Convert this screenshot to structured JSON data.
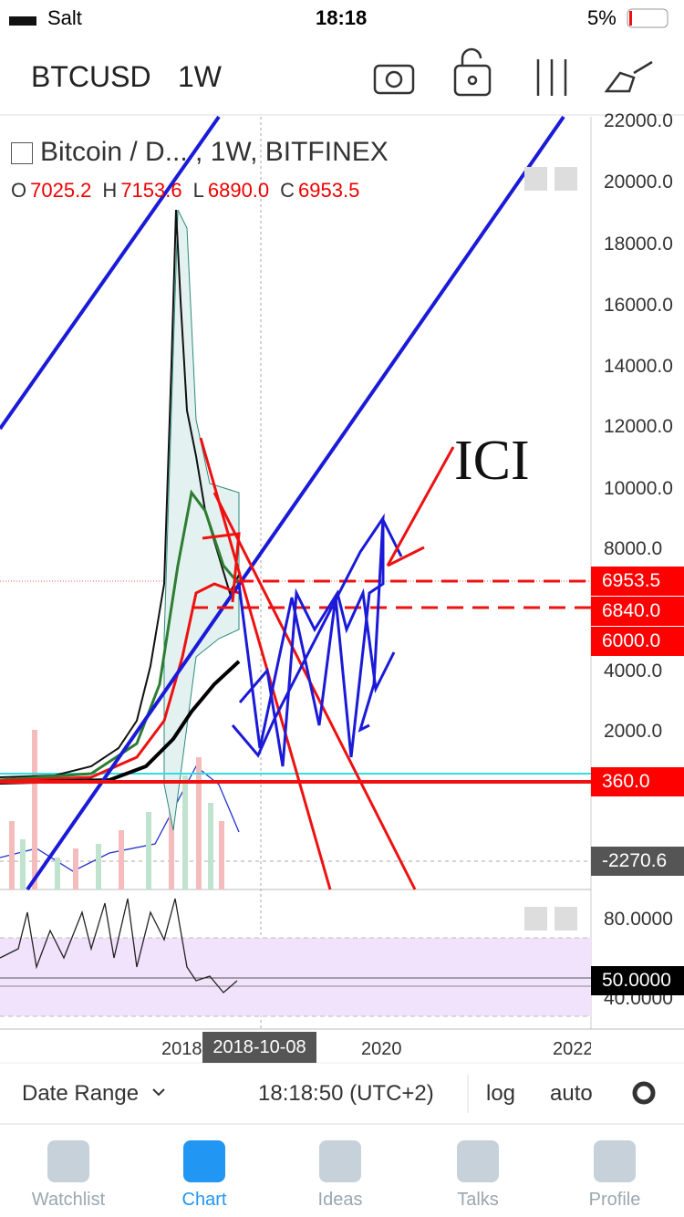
{
  "status_bar": {
    "carrier": "Salt",
    "time": "18:18",
    "battery": "5%"
  },
  "header": {
    "symbol": "BTCUSD",
    "interval": "1W"
  },
  "legend": {
    "title": "Bitcoin / D... , 1W, BITFINEX",
    "ohlc": [
      {
        "key": "O",
        "value": "7025.2"
      },
      {
        "key": "H",
        "value": "7153.6"
      },
      {
        "key": "L",
        "value": "6890.0"
      },
      {
        "key": "C",
        "value": "6953.5"
      }
    ]
  },
  "annotation": "ICI",
  "price_axis": [
    "22000.0",
    "20000.0",
    "18000.0",
    "16000.0",
    "14000.0",
    "12000.0",
    "10000.0",
    "8000.0",
    "4000.0",
    "2000.0"
  ],
  "price_tags": {
    "last": "6953.5",
    "line_1": "6840.0",
    "line_2": "6000.0",
    "line_3": "360.0",
    "volume": "-2270.6"
  },
  "rsi_axis": {
    "upper": "80.0000",
    "current": "50.0000",
    "lower": "40.0000"
  },
  "time_axis": {
    "labels": [
      "2018",
      "2020",
      "2022"
    ],
    "cursor": "2018-10-08"
  },
  "toolbar": {
    "range": "Date Range",
    "clock": "18:18:50 (UTC+2)",
    "log": "log",
    "auto": "auto"
  },
  "tabs": [
    "Watchlist",
    "Chart",
    "Ideas",
    "Talks",
    "Profile"
  ]
}
